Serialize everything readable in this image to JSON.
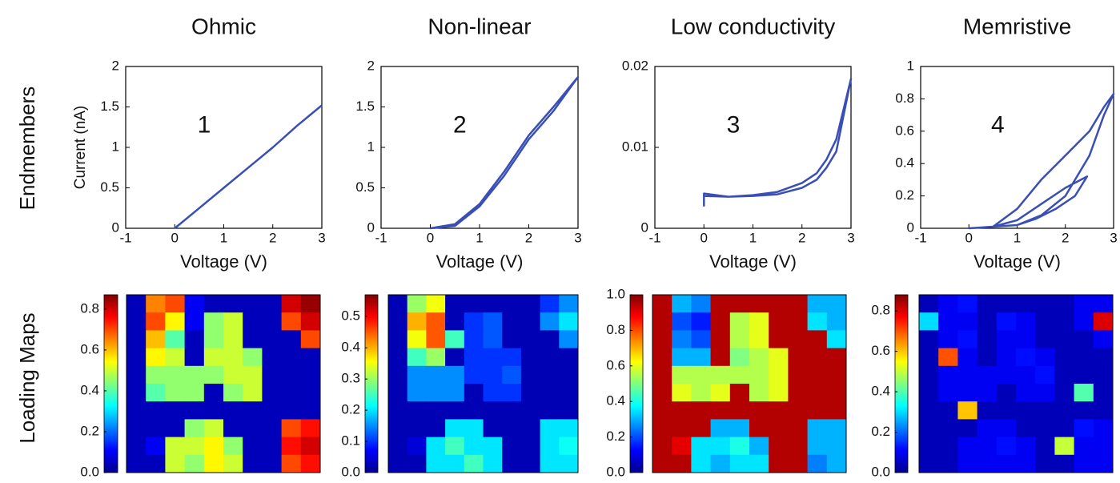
{
  "row_labels": [
    "Endmembers",
    "Loading Maps"
  ],
  "chart_data": [
    {
      "type": "line",
      "title": "Ohmic",
      "annotation": "1",
      "xlabel": "Voltage (V)",
      "ylabel": "Current (nA)",
      "xlim": [
        -1,
        3
      ],
      "xticks": [
        -1,
        0,
        1,
        2,
        3
      ],
      "ylim": [
        0,
        2
      ],
      "yticks": [
        0,
        0.5,
        1,
        1.5,
        2
      ],
      "series": [
        {
          "color": "#3a4fb5",
          "x": [
            0,
            0.5,
            1,
            1.5,
            2,
            2.5,
            3
          ],
          "values": [
            0,
            0.25,
            0.5,
            0.75,
            1.0,
            1.27,
            1.52
          ]
        }
      ]
    },
    {
      "type": "line",
      "title": "Non-linear",
      "annotation": "2",
      "xlabel": "Voltage (V)",
      "xlim": [
        -1,
        3
      ],
      "xticks": [
        -1,
        0,
        1,
        2,
        3
      ],
      "ylim": [
        0,
        2
      ],
      "yticks": [
        0,
        0.5,
        1,
        1.5,
        2
      ],
      "series": [
        {
          "color": "#3a4fb5",
          "x": [
            0,
            0.5,
            1,
            1.5,
            2,
            2.5,
            3,
            2.5,
            2,
            1.5,
            1,
            0.5,
            0
          ],
          "values": [
            0,
            0.05,
            0.3,
            0.7,
            1.15,
            1.5,
            1.87,
            1.45,
            1.1,
            0.65,
            0.27,
            0.03,
            0
          ]
        }
      ]
    },
    {
      "type": "line",
      "title": "Low conductivity",
      "annotation": "3",
      "xlabel": "Voltage (V)",
      "xlim": [
        -1,
        3
      ],
      "xticks": [
        -1,
        0,
        1,
        2,
        3
      ],
      "ylim": [
        0,
        0.02
      ],
      "yticks": [
        0,
        0.01,
        0.02
      ],
      "series": [
        {
          "color": "#3a4fb5",
          "x": [
            0,
            0.5,
            1,
            1.5,
            2,
            2.3,
            2.5,
            2.7,
            3,
            2.7,
            2.5,
            2.3,
            2,
            1.5,
            1,
            0.5,
            0,
            0
          ],
          "values": [
            0.004,
            0.0039,
            0.004,
            0.0042,
            0.005,
            0.006,
            0.0075,
            0.0095,
            0.0185,
            0.011,
            0.0085,
            0.0068,
            0.0056,
            0.0045,
            0.0041,
            0.0039,
            0.0043,
            0.0027
          ]
        }
      ]
    },
    {
      "type": "line",
      "title": "Memristive",
      "annotation": "4",
      "xlabel": "Voltage (V)",
      "xlim": [
        -1,
        3
      ],
      "xticks": [
        -1,
        0,
        1,
        2,
        3
      ],
      "ylim": [
        0,
        1
      ],
      "yticks": [
        0,
        0.2,
        0.4,
        0.6,
        0.8,
        1
      ],
      "series": [
        {
          "color": "#3a4fb5",
          "x": [
            0,
            1,
            1.5,
            2,
            2.5,
            2.8,
            3,
            2.8,
            2.5,
            2,
            1.5,
            1,
            0.5,
            1,
            1.5,
            2,
            2.45,
            2.2,
            1.8,
            1.4,
            1,
            0.5,
            0
          ],
          "values": [
            0,
            0.02,
            0.08,
            0.2,
            0.45,
            0.7,
            0.83,
            0.75,
            0.6,
            0.45,
            0.3,
            0.12,
            0.01,
            0.05,
            0.15,
            0.25,
            0.32,
            0.2,
            0.12,
            0.06,
            0.02,
            0.01,
            0
          ]
        }
      ]
    },
    {
      "type": "heatmap",
      "zlim": [
        0,
        0.87
      ],
      "zticks": [
        {
          "value": 0,
          "label": "0.0"
        },
        0.2,
        0.4,
        0.6,
        0.8
      ],
      "z": [
        [
          0.05,
          0.65,
          0.7,
          0.1,
          0.05,
          0.05,
          0.05,
          0.05,
          0.8,
          0.85
        ],
        [
          0.05,
          0.7,
          0.55,
          0.1,
          0.45,
          0.5,
          0.05,
          0.05,
          0.7,
          0.8
        ],
        [
          0.05,
          0.6,
          0.4,
          0.05,
          0.45,
          0.5,
          0.05,
          0.05,
          0.05,
          0.7
        ],
        [
          0.05,
          0.55,
          0.5,
          0.05,
          0.5,
          0.5,
          0.45,
          0.05,
          0.05,
          0.05
        ],
        [
          0.05,
          0.45,
          0.45,
          0.45,
          0.45,
          0.5,
          0.5,
          0.05,
          0.05,
          0.05
        ],
        [
          0.05,
          0.4,
          0.45,
          0.45,
          0.05,
          0.45,
          0.5,
          0.05,
          0.05,
          0.05
        ],
        [
          0.05,
          0.05,
          0.05,
          0.05,
          0.05,
          0.05,
          0.05,
          0.05,
          0.05,
          0.05
        ],
        [
          0.05,
          0.05,
          0.05,
          0.45,
          0.5,
          0.05,
          0.05,
          0.05,
          0.7,
          0.75
        ],
        [
          0.05,
          0.1,
          0.5,
          0.5,
          0.55,
          0.45,
          0.05,
          0.05,
          0.75,
          0.8
        ],
        [
          0.05,
          0.05,
          0.5,
          0.45,
          0.55,
          0.5,
          0.05,
          0.05,
          0.7,
          0.75
        ]
      ]
    },
    {
      "type": "heatmap",
      "zlim": [
        0,
        0.57
      ],
      "zticks": [
        {
          "value": 0,
          "label": "0.0"
        },
        0.1,
        0.2,
        0.3,
        0.4,
        0.5
      ],
      "z": [
        [
          0.03,
          0.3,
          0.35,
          0.03,
          0.03,
          0.03,
          0.03,
          0.03,
          0.1,
          0.15
        ],
        [
          0.03,
          0.4,
          0.45,
          0.03,
          0.1,
          0.12,
          0.03,
          0.03,
          0.15,
          0.2
        ],
        [
          0.03,
          0.35,
          0.45,
          0.25,
          0.1,
          0.12,
          0.03,
          0.03,
          0.03,
          0.15
        ],
        [
          0.03,
          0.25,
          0.3,
          0.03,
          0.1,
          0.1,
          0.1,
          0.03,
          0.03,
          0.03
        ],
        [
          0.03,
          0.15,
          0.15,
          0.15,
          0.1,
          0.1,
          0.12,
          0.03,
          0.03,
          0.03
        ],
        [
          0.03,
          0.15,
          0.15,
          0.15,
          0.03,
          0.1,
          0.1,
          0.03,
          0.03,
          0.03
        ],
        [
          0.03,
          0.03,
          0.03,
          0.03,
          0.03,
          0.03,
          0.03,
          0.03,
          0.03,
          0.03
        ],
        [
          0.03,
          0.03,
          0.03,
          0.2,
          0.2,
          0.03,
          0.03,
          0.03,
          0.2,
          0.2
        ],
        [
          0.03,
          0.05,
          0.2,
          0.25,
          0.2,
          0.2,
          0.03,
          0.03,
          0.2,
          0.22
        ],
        [
          0.03,
          0.03,
          0.2,
          0.2,
          0.25,
          0.2,
          0.03,
          0.03,
          0.2,
          0.2
        ]
      ]
    },
    {
      "type": "heatmap",
      "zlim": [
        0,
        1
      ],
      "zticks": [
        {
          "value": 0,
          "label": "0.0"
        },
        0.2,
        0.4,
        0.6,
        0.8,
        {
          "value": 1,
          "label": "1.0"
        }
      ],
      "z": [
        [
          0.95,
          0.3,
          0.25,
          0.95,
          0.95,
          0.95,
          0.95,
          0.95,
          0.3,
          0.3
        ],
        [
          0.95,
          0.2,
          0.15,
          0.95,
          0.55,
          0.6,
          0.95,
          0.95,
          0.35,
          0.3
        ],
        [
          0.95,
          0.25,
          0.2,
          0.95,
          0.55,
          0.6,
          0.95,
          0.95,
          0.95,
          0.35
        ],
        [
          0.95,
          0.3,
          0.3,
          0.95,
          0.5,
          0.55,
          0.6,
          0.95,
          0.95,
          0.95
        ],
        [
          0.95,
          0.55,
          0.55,
          0.55,
          0.55,
          0.55,
          0.6,
          0.95,
          0.95,
          0.95
        ],
        [
          0.95,
          0.6,
          0.55,
          0.6,
          0.95,
          0.55,
          0.6,
          0.95,
          0.95,
          0.95
        ],
        [
          0.95,
          0.95,
          0.95,
          0.95,
          0.95,
          0.95,
          0.95,
          0.95,
          0.95,
          0.95
        ],
        [
          0.95,
          0.95,
          0.95,
          0.3,
          0.3,
          0.95,
          0.95,
          0.95,
          0.3,
          0.3
        ],
        [
          0.95,
          0.9,
          0.35,
          0.35,
          0.4,
          0.3,
          0.95,
          0.95,
          0.3,
          0.3
        ],
        [
          0.95,
          0.95,
          0.35,
          0.3,
          0.35,
          0.35,
          0.95,
          0.95,
          0.25,
          0.3
        ]
      ]
    },
    {
      "type": "heatmap",
      "zlim": [
        0,
        0.88
      ],
      "zticks": [
        {
          "value": 0,
          "label": "0.0"
        },
        0.2,
        0.4,
        0.6,
        0.8
      ],
      "z": [
        [
          0.05,
          0.1,
          0.12,
          0.05,
          0.05,
          0.05,
          0.05,
          0.05,
          0.1,
          0.1
        ],
        [
          0.3,
          0.1,
          0.1,
          0.05,
          0.12,
          0.1,
          0.05,
          0.05,
          0.1,
          0.8
        ],
        [
          0.05,
          0.1,
          0.12,
          0.05,
          0.1,
          0.1,
          0.05,
          0.05,
          0.05,
          0.1
        ],
        [
          0.05,
          0.7,
          0.1,
          0.05,
          0.1,
          0.12,
          0.1,
          0.05,
          0.05,
          0.05
        ],
        [
          0.05,
          0.1,
          0.1,
          0.1,
          0.1,
          0.1,
          0.12,
          0.05,
          0.05,
          0.05
        ],
        [
          0.05,
          0.1,
          0.1,
          0.1,
          0.05,
          0.1,
          0.1,
          0.05,
          0.4,
          0.05
        ],
        [
          0.05,
          0.05,
          0.6,
          0.05,
          0.05,
          0.05,
          0.05,
          0.05,
          0.05,
          0.05
        ],
        [
          0.05,
          0.05,
          0.05,
          0.1,
          0.1,
          0.05,
          0.05,
          0.05,
          0.12,
          0.1
        ],
        [
          0.05,
          0.05,
          0.1,
          0.1,
          0.12,
          0.1,
          0.05,
          0.5,
          0.1,
          0.1
        ],
        [
          0.05,
          0.05,
          0.1,
          0.1,
          0.1,
          0.1,
          0.05,
          0.05,
          0.1,
          0.1
        ]
      ]
    }
  ]
}
